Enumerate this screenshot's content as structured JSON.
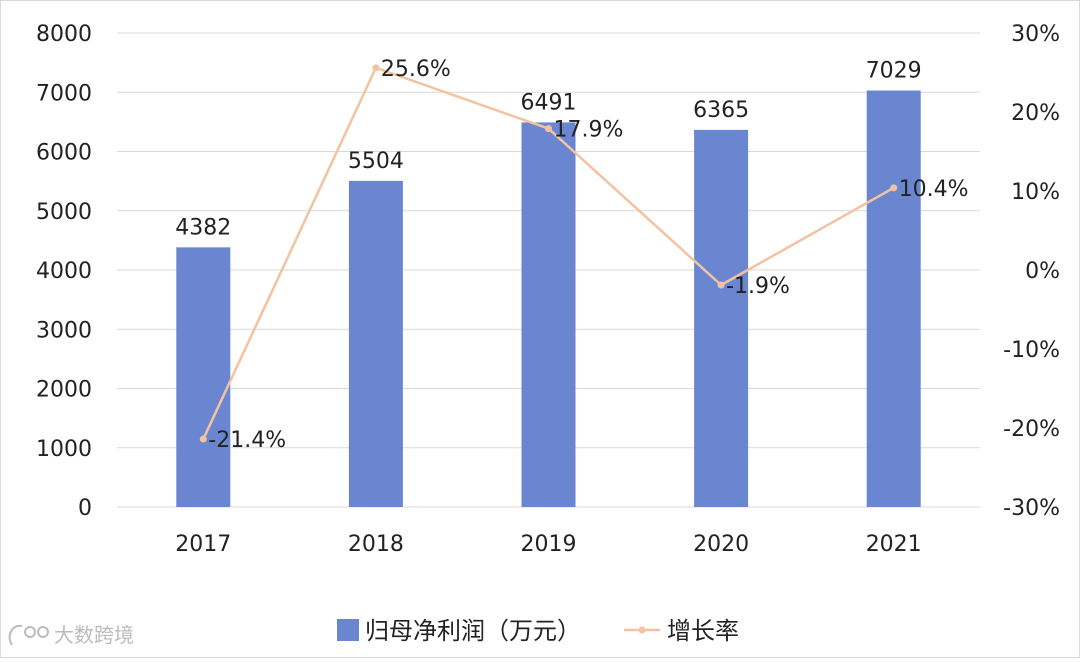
{
  "chart_data": {
    "type": "bar",
    "categories": [
      "2017",
      "2018",
      "2019",
      "2020",
      "2021"
    ],
    "series": [
      {
        "name": "归母净利润（万元）",
        "type": "bar",
        "axis": "left",
        "values": [
          4382,
          5504,
          6491,
          6365,
          7029
        ],
        "labels": [
          "4382",
          "5504",
          "6491",
          "6365",
          "7029"
        ],
        "color": "#6a86d0"
      },
      {
        "name": "增长率",
        "type": "line",
        "axis": "right",
        "values": [
          -21.4,
          25.6,
          17.9,
          -1.9,
          10.4
        ],
        "labels": [
          "-21.4%",
          "25.6%",
          "17.9%",
          "-1.9%",
          "10.4%"
        ],
        "color": "#f4c2a1"
      }
    ],
    "ylim_left": [
      0,
      8000
    ],
    "yticks_left": [
      "0",
      "1000",
      "2000",
      "3000",
      "4000",
      "5000",
      "6000",
      "7000",
      "8000"
    ],
    "ylim_right": [
      -30,
      30
    ],
    "yticks_right": [
      "-30%",
      "-20%",
      "-10%",
      "0%",
      "10%",
      "20%",
      "30%"
    ],
    "grid": true,
    "legend_position": "bottom",
    "border_color": "#d9d9d9",
    "grid_color": "#d9d9d9"
  },
  "watermark": {
    "text": "大数跨境",
    "icon": "logo-icon"
  }
}
